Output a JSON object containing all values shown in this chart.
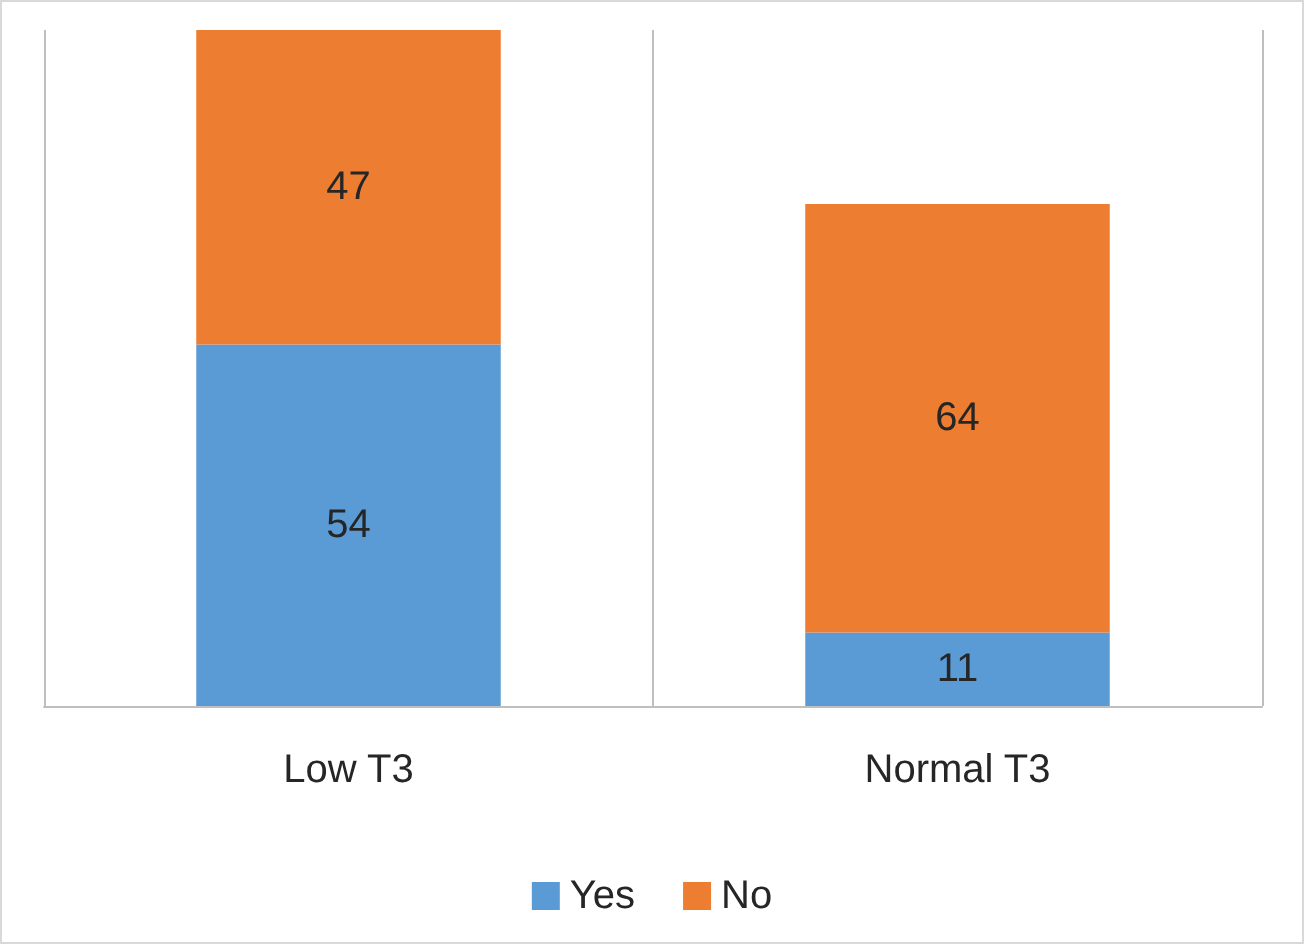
{
  "chart_data": {
    "type": "bar",
    "categories": [
      "Low T3",
      "Normal T3"
    ],
    "series": [
      {
        "name": "Yes",
        "color": "#5b9bd5",
        "values": [
          54,
          11
        ]
      },
      {
        "name": "No",
        "color": "#ed7d31",
        "values": [
          47,
          64
        ]
      }
    ],
    "stacked": true,
    "data_labels": true,
    "legend": "bottom",
    "grid": "x",
    "tick_labels": "x"
  }
}
